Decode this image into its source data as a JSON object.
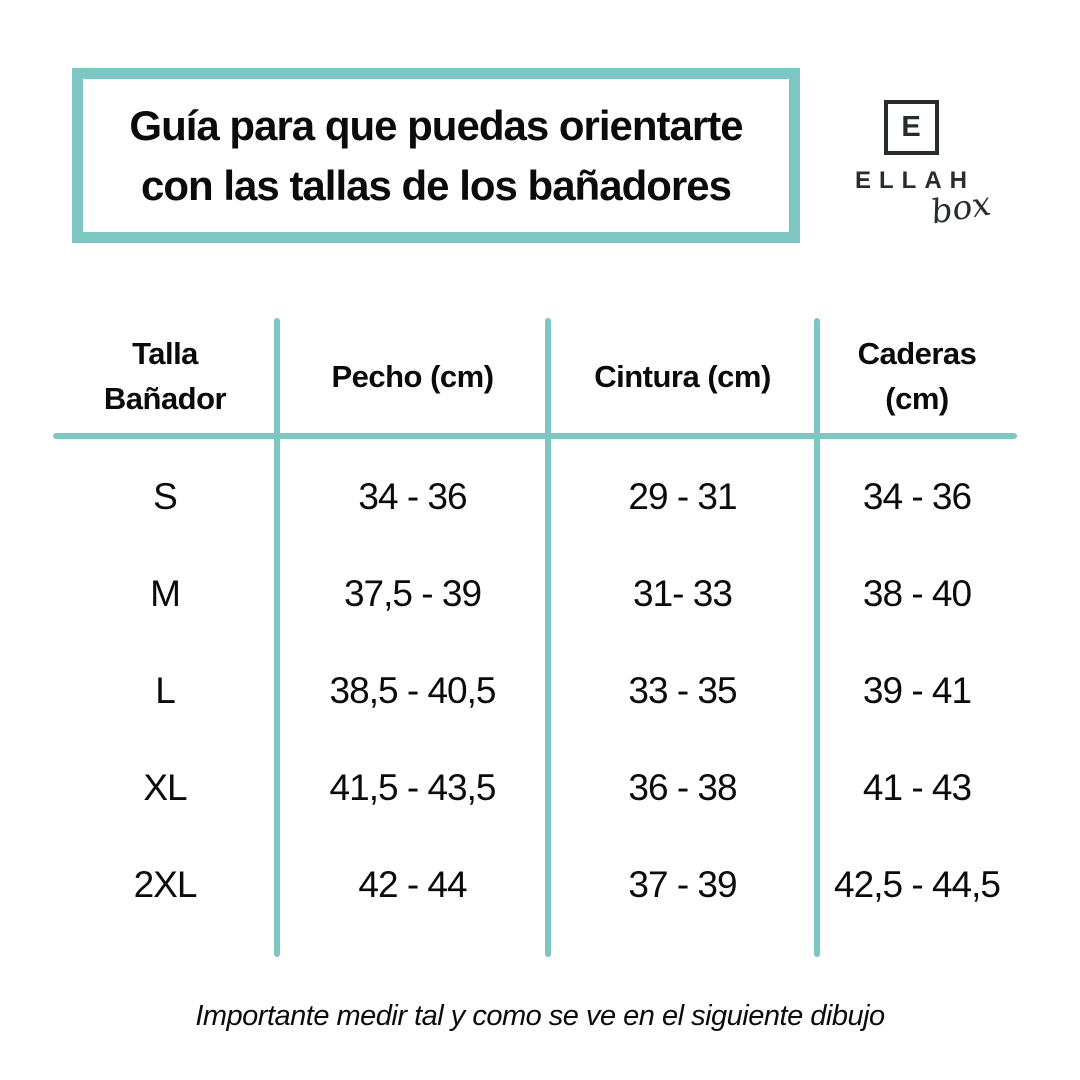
{
  "title": {
    "line1": "Guía para que puedas orientarte",
    "line2": "con las tallas de los bañadores"
  },
  "logo": {
    "monogram": "E",
    "name": "ELLAH",
    "suffix": "box"
  },
  "table": {
    "headers": [
      {
        "line1": "Talla",
        "line2": "Bañador"
      },
      {
        "line1": "Pecho (cm)",
        "line2": ""
      },
      {
        "line1": "Cintura (cm)",
        "line2": ""
      },
      {
        "line1": "Caderas",
        "line2": "(cm)"
      }
    ],
    "rows": [
      {
        "size": "S",
        "pecho": "34 - 36",
        "cintura": "29 - 31",
        "caderas": "34 - 36"
      },
      {
        "size": "M",
        "pecho": "37,5 - 39",
        "cintura": "31- 33",
        "caderas": "38 - 40"
      },
      {
        "size": "L",
        "pecho": "38,5 - 40,5",
        "cintura": "33 - 35",
        "caderas": "39 - 41"
      },
      {
        "size": "XL",
        "pecho": "41,5 - 43,5",
        "cintura": "36 - 38",
        "caderas": "41 - 43"
      },
      {
        "size": "2XL",
        "pecho": "42 - 44",
        "cintura": "37 - 39",
        "caderas": "42,5 - 44,5"
      }
    ]
  },
  "footer": {
    "note": "Importante medir tal y como se ve en el siguiente dibujo"
  },
  "colors": {
    "accent": "#7dc6c2",
    "ink": "#0b0b0b",
    "logo": "#272c30",
    "bg": "#ffffff"
  }
}
